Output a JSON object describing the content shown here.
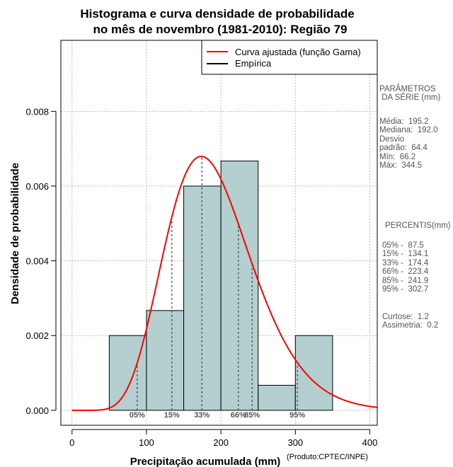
{
  "chart_data": {
    "type": "histogram",
    "title_line1": "Histograma e curva densidade de probabilidade",
    "title_line2": "no mês de novembro (1981-2010): Região 79",
    "xlabel": "Precipitação acumulada (mm)",
    "ylabel": "Densidade de probabilidade",
    "xlim": [
      -15,
      410
    ],
    "ylim": [
      -0.0004,
      0.0099
    ],
    "x_ticks": [
      0,
      100,
      200,
      300,
      400
    ],
    "x_tick_labels": [
      "0",
      "100",
      "200",
      "300",
      "400"
    ],
    "y_ticks": [
      0.0,
      0.002,
      0.004,
      0.006,
      0.008
    ],
    "y_tick_labels": [
      "0.000",
      "0.002",
      "0.004",
      "0.006",
      "0.008"
    ],
    "grid": true,
    "bins": [
      {
        "x0": 50,
        "x1": 100,
        "density": 0.002
      },
      {
        "x0": 100,
        "x1": 150,
        "density": 0.00267
      },
      {
        "x0": 150,
        "x1": 200,
        "density": 0.006
      },
      {
        "x0": 200,
        "x1": 250,
        "density": 0.00667
      },
      {
        "x0": 250,
        "x1": 300,
        "density": 0.00067
      },
      {
        "x0": 300,
        "x1": 350,
        "density": 0.002
      }
    ],
    "fitted_curve": {
      "name": "Curva ajustada (função Gama)",
      "distribution": "gamma",
      "shape": 9.9,
      "scale": 19.5,
      "color": "#ff0000"
    },
    "percentile_lines": [
      {
        "label": "05%",
        "x": 87.5
      },
      {
        "label": "15%",
        "x": 134.1
      },
      {
        "label": "33%",
        "x": 174.4
      },
      {
        "label": "66%",
        "x": 223.4
      },
      {
        "label": "85%",
        "x": 241.9
      },
      {
        "label": "95%",
        "x": 302.7
      }
    ],
    "legend": [
      {
        "label": "Curva ajustada (função Gama)",
        "color": "#ff0000"
      },
      {
        "label": "Empírica",
        "color": "#000000"
      }
    ],
    "legend_position": "top-right",
    "bar_color": "#b4cfcf"
  },
  "sidebar": {
    "params_heading": "PARÂMETROS\n DA SÉRIE (mm)",
    "params": "Média:  195.2\nMediana:  192.0\nDesvio\npadrão:  64.4\nMín:  66.2\nMáx:  344.5",
    "percentis_heading": "PERCENTIS(mm)",
    "percentis": "05% -  87.5\n15% -  134.1\n33% -  174.4\n66% -  223.4\n85% -  241.9\n95% -  302.7",
    "stats": "Curtose:  1.2\nAssimetria:  0.2"
  },
  "credit": "(Produto:CPTEC/INPE)"
}
